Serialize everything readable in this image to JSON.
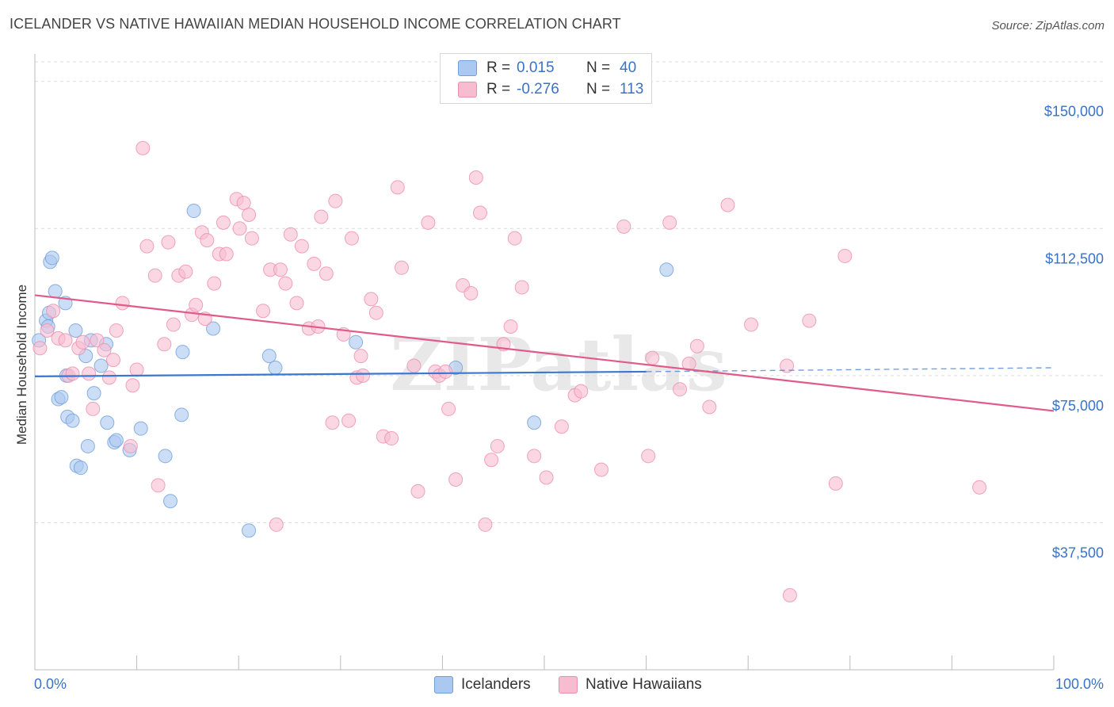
{
  "title": "ICELANDER VS NATIVE HAWAIIAN MEDIAN HOUSEHOLD INCOME CORRELATION CHART",
  "source": "Source: ZipAtlas.com",
  "watermark": "ZIPatlas",
  "legend": {
    "rows": [
      {
        "r_label": "R =",
        "r_value": "0.015",
        "n_label": "N =",
        "n_value": "40",
        "color": "#aac8f0",
        "border": "#6f9fdc"
      },
      {
        "r_label": "R =",
        "r_value": "-0.276",
        "n_label": "N =",
        "n_value": "113",
        "color": "#f8bcd0",
        "border": "#ec8fad"
      }
    ]
  },
  "bottom_legend": [
    {
      "label": "Icelanders",
      "color": "#aac8f0",
      "border": "#6f9fdc"
    },
    {
      "label": "Native Hawaiians",
      "color": "#f8bcd0",
      "border": "#ec8fad"
    }
  ],
  "chart_data": {
    "type": "scatter",
    "title": "ICELANDER VS NATIVE HAWAIIAN MEDIAN HOUSEHOLD INCOME CORRELATION CHART",
    "xlabel": "",
    "ylabel": "Median Household Income",
    "xlim": [
      0,
      100
    ],
    "ylim": [
      0,
      155000
    ],
    "x_tick_labels": [
      "0.0%",
      "100.0%"
    ],
    "y_ticks": [
      37500,
      75000,
      112500,
      150000
    ],
    "y_tick_labels": [
      "$37,500",
      "$75,000",
      "$112,500",
      "$150,000"
    ],
    "grid": true,
    "legend_position": "top-center",
    "series": [
      {
        "name": "Icelanders",
        "color": "#6f9fdc",
        "fill": "#aac8f0",
        "trend": {
          "x": [
            0,
            60
          ],
          "y": [
            74800,
            76000
          ],
          "dashed_to": [
            100,
            77000
          ],
          "color": "#3a78d0"
        },
        "points": [
          [
            0.4,
            84000
          ],
          [
            1.1,
            89000
          ],
          [
            1.3,
            87500
          ],
          [
            1.4,
            91000
          ],
          [
            1.5,
            104000
          ],
          [
            1.7,
            105000
          ],
          [
            2.0,
            96500
          ],
          [
            2.3,
            69000
          ],
          [
            2.6,
            69500
          ],
          [
            3.0,
            93500
          ],
          [
            3.1,
            75000
          ],
          [
            3.2,
            64500
          ],
          [
            3.7,
            63500
          ],
          [
            4.0,
            86500
          ],
          [
            4.1,
            52000
          ],
          [
            4.5,
            51500
          ],
          [
            5.0,
            80000
          ],
          [
            5.2,
            57000
          ],
          [
            5.5,
            84000
          ],
          [
            5.8,
            70500
          ],
          [
            6.5,
            77500
          ],
          [
            7.0,
            83000
          ],
          [
            7.1,
            63000
          ],
          [
            7.8,
            58000
          ],
          [
            8.0,
            58500
          ],
          [
            9.3,
            56000
          ],
          [
            10.4,
            61500
          ],
          [
            12.8,
            54500
          ],
          [
            13.3,
            43000
          ],
          [
            14.4,
            65000
          ],
          [
            14.5,
            81000
          ],
          [
            15.6,
            117000
          ],
          [
            17.5,
            87000
          ],
          [
            21.0,
            35500
          ],
          [
            23.0,
            80000
          ],
          [
            23.6,
            77000
          ],
          [
            31.5,
            83500
          ],
          [
            41.3,
            77000
          ],
          [
            49.0,
            63000
          ],
          [
            62.0,
            102000
          ]
        ]
      },
      {
        "name": "Native Hawaiians",
        "color": "#ec8fad",
        "fill": "#f8bcd0",
        "trend": {
          "x": [
            0,
            100
          ],
          "y": [
            95500,
            66000
          ],
          "color": "#e05a8a"
        },
        "points": [
          [
            0.5,
            82000
          ],
          [
            1.2,
            86500
          ],
          [
            1.8,
            91500
          ],
          [
            2.3,
            84500
          ],
          [
            3.0,
            84000
          ],
          [
            3.3,
            75000
          ],
          [
            3.7,
            75500
          ],
          [
            4.3,
            82000
          ],
          [
            4.7,
            83500
          ],
          [
            5.3,
            75500
          ],
          [
            5.7,
            66500
          ],
          [
            6.1,
            84000
          ],
          [
            6.8,
            81500
          ],
          [
            7.3,
            74500
          ],
          [
            7.7,
            79000
          ],
          [
            8.0,
            86500
          ],
          [
            8.6,
            93500
          ],
          [
            9.4,
            57000
          ],
          [
            9.6,
            72500
          ],
          [
            10.0,
            76500
          ],
          [
            10.6,
            133000
          ],
          [
            11.0,
            108000
          ],
          [
            11.8,
            100500
          ],
          [
            12.1,
            47000
          ],
          [
            12.7,
            83000
          ],
          [
            13.1,
            109000
          ],
          [
            13.6,
            88000
          ],
          [
            14.1,
            100500
          ],
          [
            14.8,
            101500
          ],
          [
            15.4,
            90500
          ],
          [
            15.8,
            93000
          ],
          [
            16.4,
            111500
          ],
          [
            16.7,
            89500
          ],
          [
            16.9,
            109500
          ],
          [
            17.6,
            98500
          ],
          [
            18.1,
            106000
          ],
          [
            18.5,
            114000
          ],
          [
            18.8,
            106000
          ],
          [
            19.8,
            120000
          ],
          [
            20.1,
            112500
          ],
          [
            20.5,
            119000
          ],
          [
            21.0,
            116000
          ],
          [
            21.3,
            110000
          ],
          [
            22.4,
            91500
          ],
          [
            23.1,
            102000
          ],
          [
            23.7,
            37000
          ],
          [
            24.1,
            102000
          ],
          [
            24.6,
            98500
          ],
          [
            25.1,
            111000
          ],
          [
            25.7,
            93500
          ],
          [
            26.2,
            108000
          ],
          [
            26.9,
            87000
          ],
          [
            27.4,
            103500
          ],
          [
            27.8,
            87500
          ],
          [
            28.1,
            115500
          ],
          [
            28.6,
            101000
          ],
          [
            29.2,
            63000
          ],
          [
            29.5,
            119500
          ],
          [
            30.3,
            85500
          ],
          [
            30.8,
            63500
          ],
          [
            31.1,
            110000
          ],
          [
            31.6,
            74500
          ],
          [
            32.0,
            80000
          ],
          [
            32.2,
            75000
          ],
          [
            33.0,
            94500
          ],
          [
            33.5,
            91000
          ],
          [
            34.2,
            59500
          ],
          [
            35.0,
            59000
          ],
          [
            35.6,
            123000
          ],
          [
            36.0,
            102500
          ],
          [
            37.2,
            77500
          ],
          [
            37.6,
            45500
          ],
          [
            38.6,
            114000
          ],
          [
            39.3,
            76000
          ],
          [
            39.7,
            75000
          ],
          [
            40.3,
            76000
          ],
          [
            40.6,
            66500
          ],
          [
            41.3,
            48500
          ],
          [
            42.0,
            98000
          ],
          [
            42.8,
            96000
          ],
          [
            43.3,
            125500
          ],
          [
            43.7,
            116500
          ],
          [
            44.2,
            37000
          ],
          [
            44.8,
            53500
          ],
          [
            45.4,
            57000
          ],
          [
            46.0,
            83000
          ],
          [
            46.7,
            87500
          ],
          [
            47.1,
            110000
          ],
          [
            47.8,
            97500
          ],
          [
            49.0,
            54500
          ],
          [
            50.2,
            49000
          ],
          [
            51.7,
            62000
          ],
          [
            53.0,
            70000
          ],
          [
            53.6,
            71000
          ],
          [
            55.6,
            51000
          ],
          [
            57.8,
            113000
          ],
          [
            60.2,
            54500
          ],
          [
            60.6,
            79500
          ],
          [
            62.3,
            114000
          ],
          [
            63.3,
            71500
          ],
          [
            64.2,
            78000
          ],
          [
            65.0,
            82500
          ],
          [
            66.2,
            67000
          ],
          [
            68.0,
            118500
          ],
          [
            70.3,
            88000
          ],
          [
            73.8,
            77500
          ],
          [
            74.1,
            19000
          ],
          [
            76.0,
            89000
          ],
          [
            78.6,
            47500
          ],
          [
            79.5,
            105500
          ],
          [
            92.7,
            46500
          ]
        ]
      }
    ]
  }
}
